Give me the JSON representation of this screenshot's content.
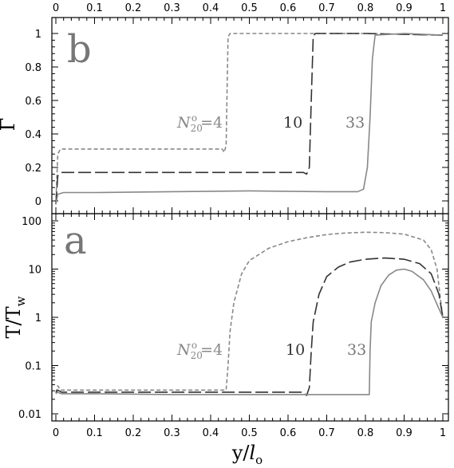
{
  "chart_data": [
    {
      "id": "b",
      "type": "line",
      "panel_label": "b",
      "ylabel": "Γ",
      "xlabel": "",
      "xlim": [
        0,
        1
      ],
      "ylim": [
        -0.05,
        1.05
      ],
      "yscale": "linear",
      "x_ticks": [
        "0",
        "0.1",
        "0.2",
        "0.3",
        "0.4",
        "0.5",
        "0.6",
        "0.7",
        "0.8",
        "0.9",
        "1"
      ],
      "y_ticks": [
        "0",
        "0.2",
        "0.4",
        "0.6",
        "0.8",
        "1"
      ],
      "series": [
        {
          "label": "N°20=4",
          "style": "short-dash",
          "color": "#888888",
          "points": [
            [
              0.0,
              -0.02
            ],
            [
              0.005,
              0.28
            ],
            [
              0.012,
              0.31
            ],
            [
              0.1,
              0.31
            ],
            [
              0.2,
              0.31
            ],
            [
              0.3,
              0.31
            ],
            [
              0.43,
              0.31
            ],
            [
              0.435,
              0.29
            ],
            [
              0.44,
              0.33
            ],
            [
              0.442,
              0.6
            ],
            [
              0.445,
              0.98
            ],
            [
              0.45,
              1.0
            ],
            [
              0.6,
              1.0
            ],
            [
              0.8,
              1.0
            ],
            [
              0.9,
              0.995
            ],
            [
              1.0,
              0.99
            ]
          ]
        },
        {
          "label": "10",
          "style": "long-dash",
          "color": "#333333",
          "points": [
            [
              0.0,
              -0.02
            ],
            [
              0.005,
              0.15
            ],
            [
              0.015,
              0.17
            ],
            [
              0.1,
              0.17
            ],
            [
              0.3,
              0.17
            ],
            [
              0.5,
              0.17
            ],
            [
              0.64,
              0.17
            ],
            [
              0.648,
              0.16
            ],
            [
              0.655,
              0.2
            ],
            [
              0.66,
              0.6
            ],
            [
              0.665,
              0.98
            ],
            [
              0.67,
              1.0
            ],
            [
              0.8,
              1.0
            ],
            [
              0.9,
              0.995
            ],
            [
              1.0,
              0.99
            ]
          ]
        },
        {
          "label": "33",
          "style": "solid",
          "color": "#888888",
          "points": [
            [
              0.0,
              -0.02
            ],
            [
              0.005,
              0.04
            ],
            [
              0.02,
              0.05
            ],
            [
              0.1,
              0.05
            ],
            [
              0.3,
              0.055
            ],
            [
              0.5,
              0.06
            ],
            [
              0.7,
              0.055
            ],
            [
              0.78,
              0.055
            ],
            [
              0.795,
              0.07
            ],
            [
              0.805,
              0.2
            ],
            [
              0.812,
              0.5
            ],
            [
              0.818,
              0.85
            ],
            [
              0.825,
              0.99
            ],
            [
              0.9,
              1.0
            ],
            [
              1.0,
              0.99
            ]
          ]
        }
      ]
    },
    {
      "id": "a",
      "type": "line",
      "panel_label": "a",
      "ylabel_main": "T/T",
      "ylabel_sub": "w",
      "xlabel_main": "y/",
      "xlabel_italic": "l",
      "xlabel_sub": "o",
      "xlim": [
        0,
        1
      ],
      "ylim": [
        0.008,
        100
      ],
      "yscale": "log",
      "x_ticks": [
        "0",
        "0.1",
        "0.2",
        "0.3",
        "0.4",
        "0.5",
        "0.6",
        "0.7",
        "0.8",
        "0.9",
        "1"
      ],
      "y_ticks": [
        "0.01",
        "0.1",
        "1",
        "10",
        "100"
      ],
      "series": [
        {
          "label": "N°20=4",
          "style": "short-dash",
          "color": "#888888",
          "points": [
            [
              0.0,
              0.027
            ],
            [
              0.005,
              0.038
            ],
            [
              0.012,
              0.031
            ],
            [
              0.1,
              0.031
            ],
            [
              0.2,
              0.031
            ],
            [
              0.3,
              0.031
            ],
            [
              0.43,
              0.031
            ],
            [
              0.44,
              0.031
            ],
            [
              0.445,
              0.1
            ],
            [
              0.45,
              0.5
            ],
            [
              0.46,
              2.0
            ],
            [
              0.48,
              8.0
            ],
            [
              0.5,
              15
            ],
            [
              0.55,
              27
            ],
            [
              0.6,
              37
            ],
            [
              0.65,
              45
            ],
            [
              0.7,
              52
            ],
            [
              0.75,
              56
            ],
            [
              0.8,
              58
            ],
            [
              0.85,
              57
            ],
            [
              0.9,
              53
            ],
            [
              0.95,
              40
            ],
            [
              0.97,
              25
            ],
            [
              0.985,
              10
            ],
            [
              0.995,
              2.0
            ],
            [
              1.0,
              1.0
            ]
          ]
        },
        {
          "label": "10",
          "style": "long-dash",
          "color": "#333333",
          "points": [
            [
              0.0,
              0.028
            ],
            [
              0.005,
              0.031
            ],
            [
              0.015,
              0.028
            ],
            [
              0.1,
              0.028
            ],
            [
              0.3,
              0.028
            ],
            [
              0.5,
              0.028
            ],
            [
              0.64,
              0.028
            ],
            [
              0.648,
              0.024
            ],
            [
              0.655,
              0.035
            ],
            [
              0.66,
              0.2
            ],
            [
              0.665,
              0.8
            ],
            [
              0.68,
              3.0
            ],
            [
              0.7,
              7.0
            ],
            [
              0.73,
              11
            ],
            [
              0.76,
              14
            ],
            [
              0.8,
              16
            ],
            [
              0.85,
              17
            ],
            [
              0.9,
              16
            ],
            [
              0.94,
              13
            ],
            [
              0.97,
              8
            ],
            [
              0.99,
              3
            ],
            [
              1.0,
              1.0
            ]
          ]
        },
        {
          "label": "33",
          "style": "solid",
          "color": "#888888",
          "points": [
            [
              0.0,
              0.026
            ],
            [
              0.004,
              0.028
            ],
            [
              0.015,
              0.026
            ],
            [
              0.1,
              0.026
            ],
            [
              0.3,
              0.025
            ],
            [
              0.5,
              0.025
            ],
            [
              0.7,
              0.025
            ],
            [
              0.8,
              0.025
            ],
            [
              0.81,
              0.025
            ],
            [
              0.812,
              0.2
            ],
            [
              0.815,
              0.8
            ],
            [
              0.825,
              2.0
            ],
            [
              0.84,
              4.5
            ],
            [
              0.86,
              7.5
            ],
            [
              0.88,
              9.5
            ],
            [
              0.9,
              10
            ],
            [
              0.92,
              9
            ],
            [
              0.95,
              6
            ],
            [
              0.97,
              3.5
            ],
            [
              0.99,
              1.5
            ],
            [
              1.0,
              1.0
            ]
          ]
        }
      ]
    }
  ]
}
